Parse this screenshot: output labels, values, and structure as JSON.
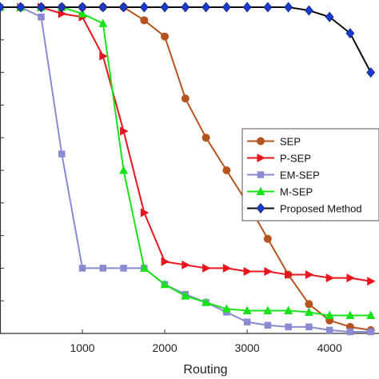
{
  "chart_data": {
    "type": "line",
    "xlabel": "Routing",
    "ylabel": "",
    "xlim": [
      0,
      4600
    ],
    "ylim": [
      0,
      1
    ],
    "x_ticks": [
      1000,
      2000,
      3000,
      4000
    ],
    "y_ticks": [
      0.1,
      0.2,
      0.3,
      0.4,
      0.5,
      0.6,
      0.7,
      0.8,
      0.9
    ],
    "grid": false,
    "legend_position": "right",
    "series": [
      {
        "name": "SEP",
        "color": "#b5541f",
        "marker": "circle",
        "x": [
          0,
          250,
          500,
          750,
          1000,
          1250,
          1500,
          1750,
          2000,
          2250,
          2500,
          2750,
          3000,
          3250,
          3500,
          3750,
          4000,
          4250,
          4500
        ],
        "y": [
          1.0,
          1.0,
          1.0,
          1.0,
          1.0,
          1.0,
          1.0,
          0.96,
          0.91,
          0.72,
          0.6,
          0.5,
          0.4,
          0.29,
          0.18,
          0.09,
          0.04,
          0.02,
          0.01
        ]
      },
      {
        "name": "P-SEP",
        "color": "#e8141e",
        "marker": "triangle-right",
        "x": [
          0,
          250,
          500,
          750,
          1000,
          1250,
          1500,
          1750,
          2000,
          2250,
          2500,
          2750,
          3000,
          3250,
          3500,
          3750,
          4000,
          4250,
          4500
        ],
        "y": [
          1.0,
          1.0,
          1.0,
          0.98,
          0.97,
          0.85,
          0.62,
          0.37,
          0.22,
          0.21,
          0.2,
          0.2,
          0.19,
          0.19,
          0.18,
          0.18,
          0.17,
          0.17,
          0.16
        ]
      },
      {
        "name": "EM-SEP",
        "color": "#8a8ad2",
        "marker": "square",
        "x": [
          0,
          250,
          500,
          750,
          1000,
          1250,
          1500,
          1750,
          2000,
          2250,
          2500,
          2750,
          3000,
          3250,
          3500,
          3750,
          4000,
          4250,
          4500
        ],
        "y": [
          1.0,
          1.0,
          0.97,
          0.55,
          0.2,
          0.2,
          0.2,
          0.2,
          0.15,
          0.12,
          0.095,
          0.065,
          0.035,
          0.025,
          0.02,
          0.02,
          0.01,
          0.005,
          0.005
        ]
      },
      {
        "name": "M-SEP",
        "color": "#18e318",
        "marker": "triangle-up",
        "x": [
          0,
          250,
          500,
          750,
          1000,
          1250,
          1500,
          1750,
          2000,
          2250,
          2500,
          2750,
          3000,
          3250,
          3500,
          3750,
          4000,
          4250,
          4500
        ],
        "y": [
          1.0,
          1.0,
          1.0,
          1.0,
          0.98,
          0.95,
          0.5,
          0.2,
          0.15,
          0.115,
          0.095,
          0.075,
          0.07,
          0.07,
          0.07,
          0.065,
          0.055,
          0.055,
          0.055
        ]
      },
      {
        "name": "Proposed Method",
        "color": "#0b0b0b",
        "markerColor": "#1a3acb",
        "marker": "diamond",
        "x": [
          0,
          250,
          500,
          750,
          1000,
          1250,
          1500,
          1750,
          2000,
          2250,
          2500,
          2750,
          3000,
          3250,
          3500,
          3750,
          4000,
          4250,
          4500
        ],
        "y": [
          1.0,
          1.0,
          1.0,
          1.0,
          1.0,
          1.0,
          1.0,
          1.0,
          1.0,
          1.0,
          1.0,
          1.0,
          1.0,
          1.0,
          1.0,
          0.99,
          0.97,
          0.92,
          0.8
        ]
      }
    ]
  }
}
